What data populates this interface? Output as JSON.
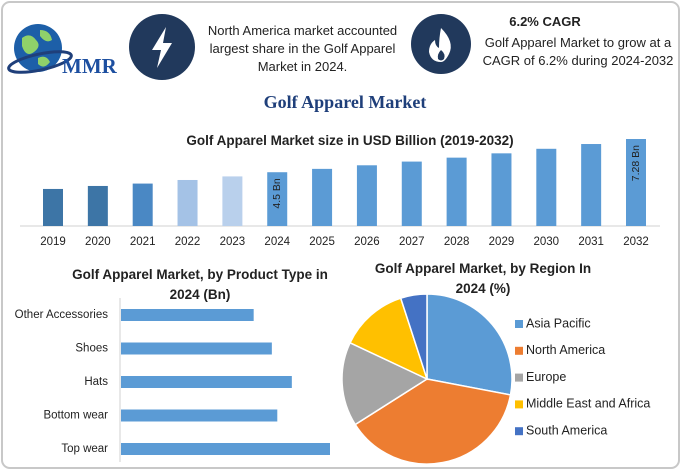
{
  "header": {
    "logo": "MMR",
    "fact_1": "North America market accounted largest share in the Golf Apparel Market in 2024.",
    "fact_2_title": "6.2% CAGR",
    "fact_2": "Golf Apparel Market to grow at a CAGR of 6.2% during 2024-2032",
    "title": "Golf Apparel Market"
  },
  "chart_data": [
    {
      "type": "bar",
      "title": "Golf Apparel Market size in USD Billion (2019-2032)",
      "categories": [
        "2019",
        "2020",
        "2021",
        "2022",
        "2023",
        "2024",
        "2025",
        "2026",
        "2027",
        "2028",
        "2029",
        "2030",
        "2031",
        "2032"
      ],
      "values": [
        3.1,
        3.35,
        3.55,
        3.85,
        4.15,
        4.5,
        4.78,
        5.08,
        5.39,
        5.72,
        6.08,
        6.46,
        6.86,
        7.28
      ],
      "value_labels": [
        null,
        null,
        null,
        null,
        null,
        "4.5 Bn",
        null,
        null,
        null,
        null,
        null,
        null,
        null,
        "7.28 Bn"
      ],
      "colors": [
        "#3d75a6",
        "#3d75a6",
        "#4a88c4",
        "#a4c2e6",
        "#b9d0ec",
        "#5b9bd5",
        "#5b9bd5",
        "#5b9bd5",
        "#5b9bd5",
        "#5b9bd5",
        "#5b9bd5",
        "#5b9bd5",
        "#5b9bd5",
        "#5b9bd5"
      ]
    },
    {
      "type": "hbar",
      "title": "Golf Apparel Market, by Product Type in 2024 (Bn)",
      "categories": [
        "Other Accessories",
        "Shoes",
        "Hats",
        "Bottom wear",
        "Top wear"
      ],
      "values": [
        0.73,
        0.83,
        0.94,
        0.86,
        1.15
      ],
      "color": "#5b9bd5"
    },
    {
      "type": "pie",
      "title": "Golf Apparel Market, by Region In 2024 (%)",
      "categories": [
        "Asia Pacific",
        "North America",
        "Europe",
        "Middle East and Africa",
        "South America"
      ],
      "values": [
        28,
        38,
        16,
        13,
        5
      ],
      "colors": [
        "#5b9bd5",
        "#ed7d31",
        "#a5a5a5",
        "#ffc000",
        "#4472c4"
      ],
      "legend": "right"
    }
  ]
}
